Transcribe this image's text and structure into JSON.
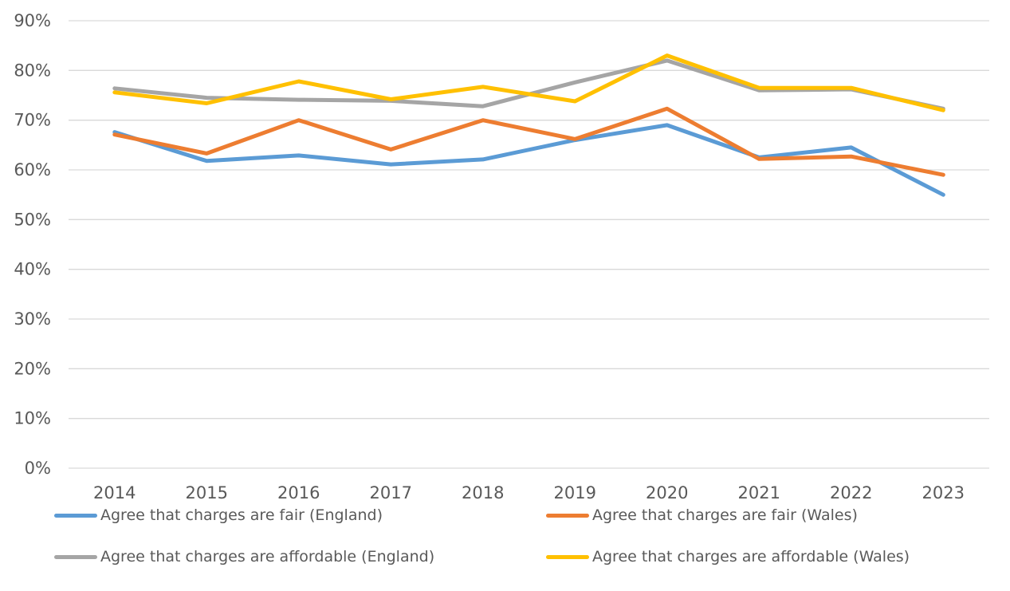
{
  "chart_data": {
    "type": "line",
    "categories": [
      "2014",
      "2015",
      "2016",
      "2017",
      "2018",
      "2019",
      "2020",
      "2021",
      "2022",
      "2023"
    ],
    "ylim": [
      0,
      90
    ],
    "yticks": [
      "0%",
      "10%",
      "20%",
      "30%",
      "40%",
      "50%",
      "60%",
      "70%",
      "80%",
      "90%"
    ],
    "grid": true,
    "legend_position": "bottom",
    "series": [
      {
        "name": "Agree that charges are fair (England)",
        "color": "#5B9BD5",
        "values": [
          67.6,
          61.8,
          62.9,
          61.1,
          62.1,
          66.0,
          69.0,
          62.5,
          64.5,
          55.0
        ]
      },
      {
        "name": "Agree that charges are fair (Wales)",
        "color": "#ED7D31",
        "values": [
          67.1,
          63.3,
          70.0,
          64.1,
          70.0,
          66.2,
          72.3,
          62.2,
          62.7,
          59.0
        ]
      },
      {
        "name": "Agree that charges are affordable (England)",
        "color": "#A5A5A5",
        "values": [
          76.4,
          74.5,
          74.1,
          73.9,
          72.8,
          77.6,
          82.0,
          76.0,
          76.2,
          72.3
        ]
      },
      {
        "name": "Agree that charges are affordable (Wales)",
        "color": "#FFC000",
        "values": [
          75.6,
          73.4,
          77.8,
          74.2,
          76.7,
          73.8,
          83.0,
          76.5,
          76.5,
          72.0
        ]
      }
    ]
  }
}
